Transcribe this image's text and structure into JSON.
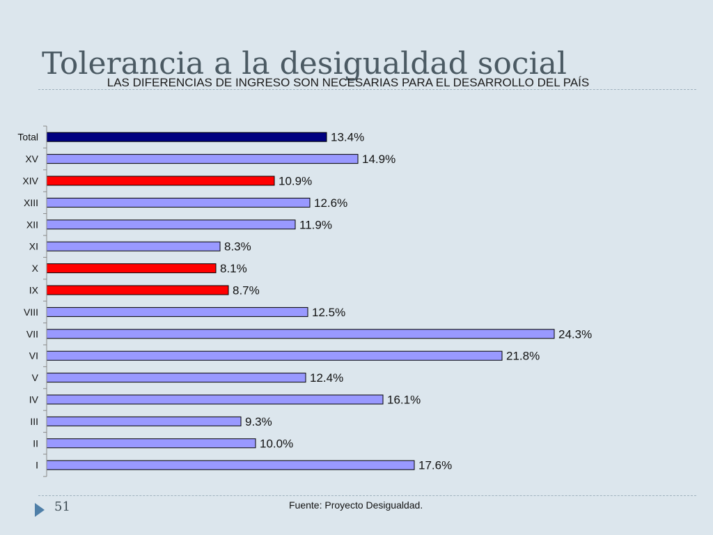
{
  "slide": {
    "title": "Tolerancia a la desigualdad social",
    "source": "Fuente: Proyecto Desigualdad.",
    "page_number": "51",
    "nav_icon": "play-triangle-icon"
  },
  "colors": {
    "background": "#dce6ed",
    "bar_default": "#9999ff",
    "bar_total": "#000080",
    "bar_highlight": "#ff0000",
    "bar_outline": "#000000",
    "nav_icon": "#4f7fa8"
  },
  "chart_data": {
    "type": "bar",
    "orientation": "horizontal",
    "title": "LAS DIFERENCIAS DE INGRESO SON NECESARIAS PARA EL DESARROLLO DEL PAÍS",
    "categories": [
      "Total",
      "XV",
      "XIV",
      "XIII",
      "XII",
      "XI",
      "X",
      "IX",
      "VIII",
      "VII",
      "VI",
      "V",
      "IV",
      "III",
      "II",
      "I"
    ],
    "values": [
      13.4,
      14.9,
      10.9,
      12.6,
      11.9,
      8.3,
      8.1,
      8.7,
      12.5,
      24.3,
      21.8,
      12.4,
      16.1,
      9.3,
      10.0,
      17.6
    ],
    "data_labels": [
      "13.4%",
      "14.9%",
      "10.9%",
      "12.6%",
      "11.9%",
      "8.3%",
      "8.1%",
      "8.7%",
      "12.5%",
      "24.3%",
      "21.8%",
      "12.4%",
      "16.1%",
      "9.3%",
      "10.0%",
      "17.6%"
    ],
    "bar_color_groups": [
      "total",
      "default",
      "highlight",
      "default",
      "default",
      "default",
      "highlight",
      "highlight",
      "default",
      "default",
      "default",
      "default",
      "default",
      "default",
      "default",
      "default"
    ],
    "xlim": [
      0,
      26
    ],
    "grid": false,
    "legend": "none"
  }
}
